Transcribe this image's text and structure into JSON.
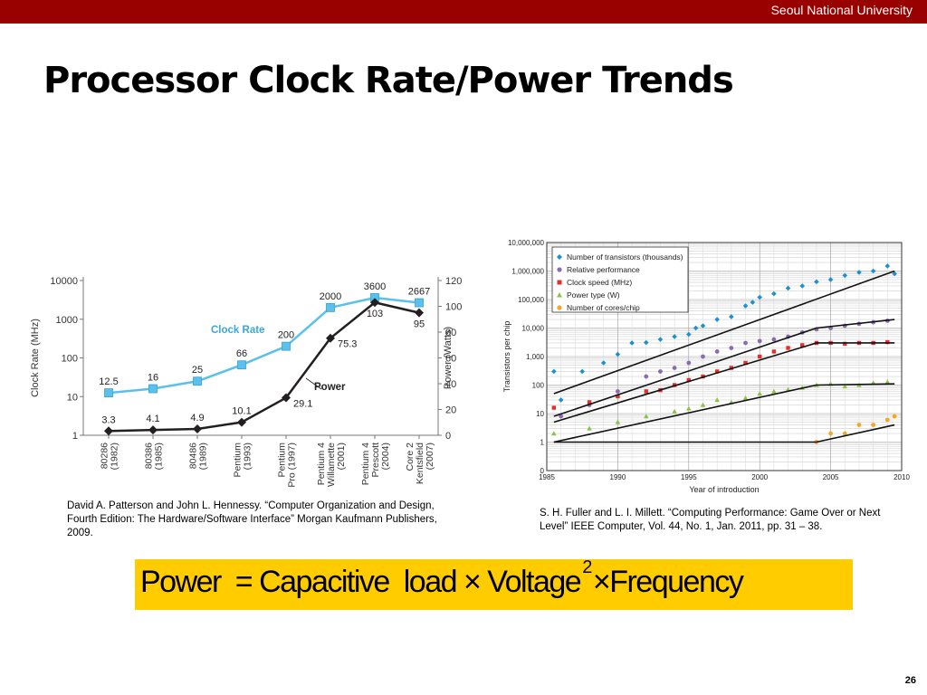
{
  "header": {
    "university": "Seoul National University"
  },
  "title": "Processor Clock Rate/Power Trends",
  "chart_data": [
    {
      "type": "line",
      "categories": [
        "80286 (1982)",
        "80386 (1985)",
        "80486 (1989)",
        "Pentium (1993)",
        "Pentium Pro (1997)",
        "Pentium 4 Willamette (2001)",
        "Pentium 4 Prescott (2004)",
        "Core 2 Kentsfield (2007)"
      ],
      "category_lines": [
        [
          "80286",
          "(1982)"
        ],
        [
          "80386",
          "(1985)"
        ],
        [
          "80486",
          "(1989)"
        ],
        [
          "Pentium",
          "(1993)"
        ],
        [
          "Pentium",
          "Pro (1997)"
        ],
        [
          "Pentium 4",
          "Willamette",
          "(2001)"
        ],
        [
          "Pentium 4",
          "Prescott",
          "(2004)"
        ],
        [
          "Core 2",
          "Kentsfield",
          "(2007)"
        ]
      ],
      "series": [
        {
          "name": "Clock Rate",
          "axis": "left",
          "values": [
            12.5,
            16,
            25,
            66,
            200,
            2000,
            3600,
            2667
          ],
          "labels": [
            "12.5",
            "16",
            "25",
            "66",
            "200",
            "2000",
            "3600",
            "2667"
          ],
          "color": "#5bc0eb",
          "marker": "square"
        },
        {
          "name": "Power",
          "axis": "right",
          "values": [
            3.3,
            4.1,
            4.9,
            10.1,
            29.1,
            75.3,
            103,
            95
          ],
          "labels": [
            "3.3",
            "4.1",
            "4.9",
            "10.1",
            "29.1",
            "75.3",
            "103",
            "95"
          ],
          "color": "#231f20",
          "marker": "diamond"
        }
      ],
      "ylabel": "Clock Rate (MHz)",
      "y2label": "Power (Watts)",
      "y_scale": "log",
      "ylim": [
        1,
        10000
      ],
      "y_ticks": [
        "1",
        "10",
        "100",
        "1000",
        "10000"
      ],
      "y2lim": [
        0,
        120
      ],
      "y2_ticks": [
        "0",
        "20",
        "40",
        "60",
        "80",
        "100",
        "120"
      ]
    },
    {
      "type": "scatter",
      "title": "",
      "xlabel": "Year of introduction",
      "ylabel": "Transistors per chip",
      "x_ticks": [
        "1985",
        "1990",
        "1995",
        "2000",
        "2005",
        "2010"
      ],
      "xlim": [
        1985,
        2010
      ],
      "y_scale": "log",
      "y_ticks": [
        "0",
        "1",
        "10",
        "100",
        "1,000",
        "10,000",
        "100,000",
        "1,000,000",
        "10,000,000"
      ],
      "legend_position": "top-left",
      "grid": true,
      "series": [
        {
          "name": "Number of transistors (thousands)",
          "color": "#1f8fcf",
          "marker": "diamond",
          "trend": [
            [
              1985.5,
              50
            ],
            [
              2009.5,
              1000000
            ]
          ],
          "points": [
            [
              1985.5,
              300
            ],
            [
              1986,
              30
            ],
            [
              1987.5,
              300
            ],
            [
              1989,
              600
            ],
            [
              1990,
              1200
            ],
            [
              1991,
              3000
            ],
            [
              1992,
              3100
            ],
            [
              1993,
              4000
            ],
            [
              1994,
              5000
            ],
            [
              1995,
              6000
            ],
            [
              1995.5,
              10000
            ],
            [
              1996,
              12000
            ],
            [
              1997,
              20000
            ],
            [
              1998,
              25000
            ],
            [
              1999,
              60000
            ],
            [
              1999.5,
              80000
            ],
            [
              2000,
              120000
            ],
            [
              2001,
              160000
            ],
            [
              2002,
              250000
            ],
            [
              2003,
              300000
            ],
            [
              2004,
              420000
            ],
            [
              2005,
              500000
            ],
            [
              2006,
              700000
            ],
            [
              2007,
              900000
            ],
            [
              2008,
              1000000
            ],
            [
              2009,
              1500000
            ],
            [
              2009.5,
              800000
            ]
          ]
        },
        {
          "name": "Relative performance",
          "color": "#8c6bb1",
          "marker": "circle",
          "trend": [
            [
              1985.5,
              8
            ],
            [
              2004,
              10000
            ],
            [
              2009.5,
              20000
            ]
          ],
          "points": [
            [
              1986,
              8
            ],
            [
              1988,
              20
            ],
            [
              1990,
              60
            ],
            [
              1992,
              200
            ],
            [
              1993,
              300
            ],
            [
              1994,
              400
            ],
            [
              1995,
              600
            ],
            [
              1996,
              1000
            ],
            [
              1997,
              1500
            ],
            [
              1998,
              2000
            ],
            [
              1999,
              3000
            ],
            [
              2000,
              3500
            ],
            [
              2001,
              4000
            ],
            [
              2002,
              5000
            ],
            [
              2003,
              7000
            ],
            [
              2004,
              9000
            ],
            [
              2005,
              10000
            ],
            [
              2006,
              12000
            ],
            [
              2007,
              14000
            ],
            [
              2008,
              16000
            ],
            [
              2009,
              18000
            ]
          ]
        },
        {
          "name": "Clock speed (MHz)",
          "color": "#e0302c",
          "marker": "square",
          "trend": [
            [
              1985.5,
              5
            ],
            [
              2004,
              3000
            ],
            [
              2009.5,
              3000
            ]
          ],
          "points": [
            [
              1985.5,
              16
            ],
            [
              1988,
              25
            ],
            [
              1990,
              40
            ],
            [
              1992,
              60
            ],
            [
              1993,
              66
            ],
            [
              1994,
              100
            ],
            [
              1995,
              150
            ],
            [
              1996,
              200
            ],
            [
              1997,
              300
            ],
            [
              1998,
              400
            ],
            [
              1999,
              600
            ],
            [
              2000,
              1000
            ],
            [
              2001,
              1500
            ],
            [
              2002,
              2000
            ],
            [
              2003,
              2500
            ],
            [
              2004,
              3000
            ],
            [
              2005,
              3000
            ],
            [
              2006,
              2800
            ],
            [
              2007,
              3000
            ],
            [
              2008,
              3000
            ],
            [
              2009,
              3200
            ]
          ]
        },
        {
          "name": "Power type (W)",
          "color": "#8bc34a",
          "marker": "triangle",
          "trend": [
            [
              1985.5,
              1
            ],
            [
              2004,
              100
            ],
            [
              2009.5,
              110
            ]
          ],
          "points": [
            [
              1985.5,
              2
            ],
            [
              1988,
              3
            ],
            [
              1990,
              5
            ],
            [
              1992,
              8
            ],
            [
              1994,
              12
            ],
            [
              1995,
              15
            ],
            [
              1996,
              20
            ],
            [
              1997,
              30
            ],
            [
              1998,
              25
            ],
            [
              1999,
              35
            ],
            [
              2000,
              50
            ],
            [
              2001,
              60
            ],
            [
              2002,
              70
            ],
            [
              2003,
              80
            ],
            [
              2004,
              100
            ],
            [
              2005,
              110
            ],
            [
              2006,
              90
            ],
            [
              2007,
              100
            ],
            [
              2008,
              120
            ],
            [
              2009,
              130
            ]
          ]
        },
        {
          "name": "Number of cores/chip",
          "color": "#f5a623",
          "marker": "circle",
          "trend": [
            [
              1985.5,
              1
            ],
            [
              2004,
              1
            ],
            [
              2009.5,
              4
            ]
          ],
          "points": [
            [
              2004,
              1
            ],
            [
              2005,
              2
            ],
            [
              2006,
              2
            ],
            [
              2007,
              4
            ],
            [
              2008,
              4
            ],
            [
              2009,
              6
            ],
            [
              2009.5,
              8
            ]
          ]
        }
      ]
    }
  ],
  "captions": {
    "left": "David A. Patterson and John L. Hennessy. “Computer Organization and Design, Fourth Edition: The Hardware/Software Interface” Morgan Kaufmann Publishers, 2009.",
    "right": "S. H. Fuller and L. I. Millett. “Computing Performance: Game Over or Next Level” IEEE Computer, Vol. 44, No. 1, Jan. 2011, pp. 31 – 38."
  },
  "formula": {
    "power": "Power",
    "eq": "=",
    "cap_load": "Capacitive  load",
    "times1": "×",
    "voltage": "Voltage",
    "exp": "2",
    "times2": "×",
    "frequency": "Frequency"
  },
  "slide_number": "26"
}
